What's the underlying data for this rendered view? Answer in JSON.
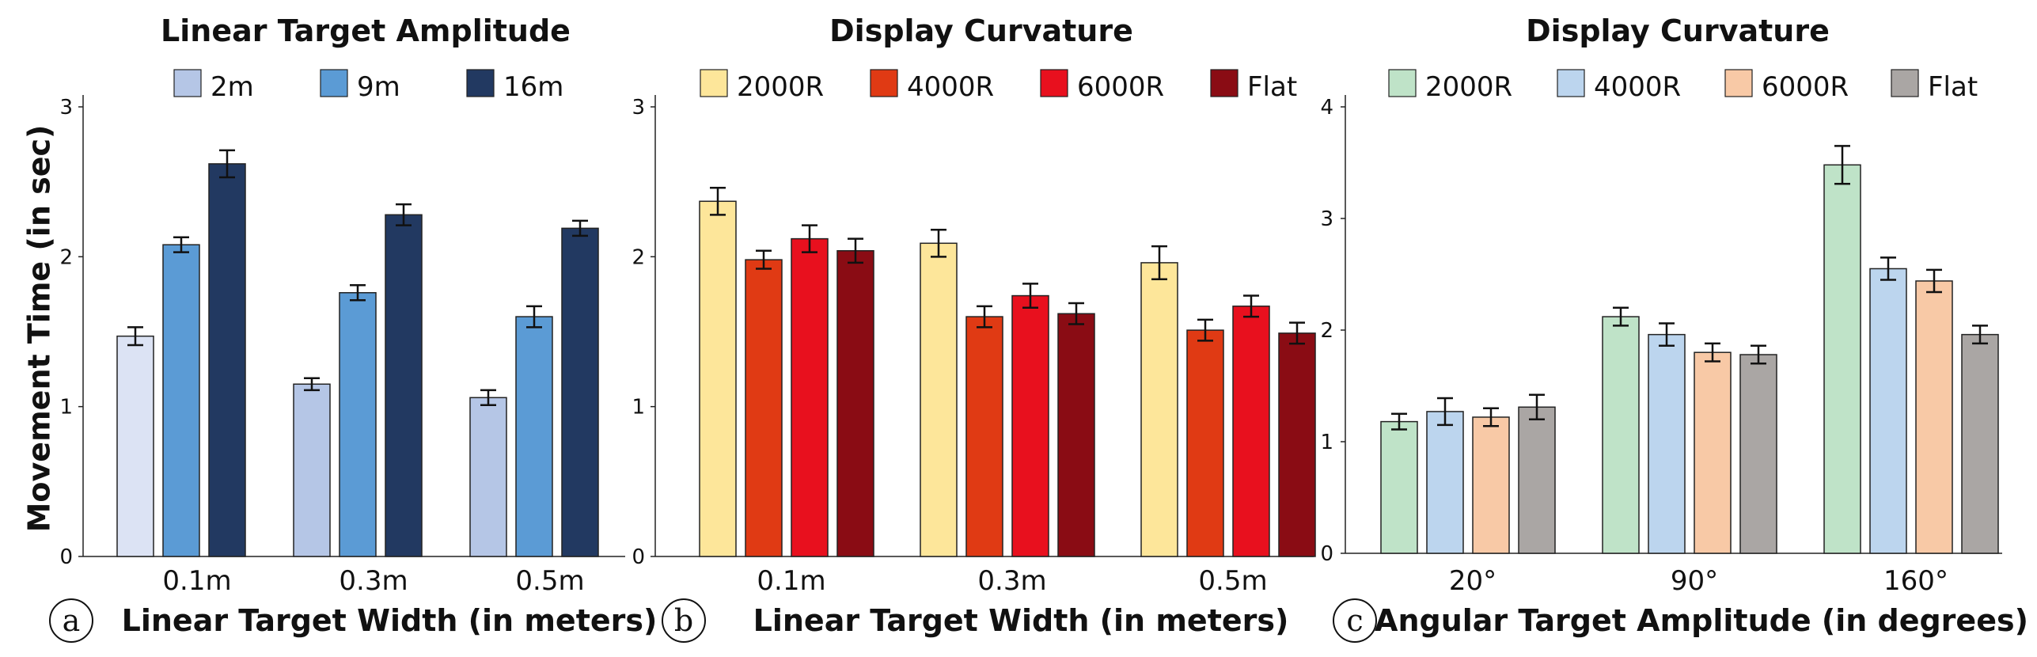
{
  "ylabel": "Movement Time (in sec)",
  "chart_data": [
    {
      "type": "bar",
      "panel_label": "a",
      "title": "Linear Target Amplitude",
      "xlabel": "Linear Target Width (in meters)",
      "ylabel": "Movement Time (in sec)",
      "categories": [
        "0.1m",
        "0.3m",
        "0.5m"
      ],
      "ylim": [
        0,
        3
      ],
      "yticks": [
        "0",
        "1",
        "2",
        "3"
      ],
      "series": [
        {
          "name": "2m",
          "values": [
            1.47,
            1.15,
            1.06
          ],
          "errors": [
            0.06,
            0.04,
            0.05
          ],
          "colors": [
            "#dce3f4",
            "#b5c6e6",
            "#b5c6e6"
          ]
        },
        {
          "name": "9m",
          "values": [
            2.08,
            1.76,
            1.6
          ],
          "errors": [
            0.05,
            0.05,
            0.07
          ],
          "colors": [
            "#5b9bd5",
            "#5b9bd5",
            "#5b9bd5"
          ]
        },
        {
          "name": "16m",
          "values": [
            2.62,
            2.28,
            2.19
          ],
          "errors": [
            0.09,
            0.07,
            0.05
          ],
          "colors": [
            "#223961",
            "#223961",
            "#223961"
          ]
        }
      ]
    },
    {
      "type": "bar",
      "panel_label": "b",
      "title": "Display Curvature",
      "xlabel": "Linear Target Width (in meters)",
      "categories": [
        "0.1m",
        "0.3m",
        "0.5m"
      ],
      "ylim": [
        0,
        3
      ],
      "yticks": [
        "0",
        "1",
        "2",
        "3"
      ],
      "series": [
        {
          "name": "2000R",
          "values": [
            2.37,
            2.09,
            1.96
          ],
          "errors": [
            0.09,
            0.09,
            0.11
          ],
          "colors": [
            "#fde69a",
            "#fde69a",
            "#fde69a"
          ]
        },
        {
          "name": "4000R",
          "values": [
            1.98,
            1.6,
            1.51
          ],
          "errors": [
            0.06,
            0.07,
            0.07
          ],
          "colors": [
            "#e03a14",
            "#e03a14",
            "#e03a14"
          ]
        },
        {
          "name": "6000R",
          "values": [
            2.12,
            1.74,
            1.67
          ],
          "errors": [
            0.09,
            0.08,
            0.07
          ],
          "colors": [
            "#e8101e",
            "#e8101e",
            "#e8101e"
          ]
        },
        {
          "name": "Flat",
          "values": [
            2.04,
            1.62,
            1.49
          ],
          "errors": [
            0.08,
            0.07,
            0.07
          ],
          "colors": [
            "#8a0c14",
            "#8a0c14",
            "#8a0c14"
          ]
        }
      ]
    },
    {
      "type": "bar",
      "panel_label": "c",
      "title": "Display Curvature",
      "xlabel": "Angular Target Amplitude (in degrees)",
      "categories": [
        "20°",
        "90°",
        "160°"
      ],
      "ylim": [
        0,
        4
      ],
      "yticks": [
        "0",
        "1",
        "2",
        "3",
        "4"
      ],
      "series": [
        {
          "name": "2000R",
          "values": [
            1.18,
            2.12,
            3.48
          ],
          "errors": [
            0.07,
            0.08,
            0.17
          ],
          "colors": [
            "#bfe3c8",
            "#bfe3c8",
            "#bfe3c8"
          ]
        },
        {
          "name": "4000R",
          "values": [
            1.27,
            1.96,
            2.55
          ],
          "errors": [
            0.12,
            0.1,
            0.1
          ],
          "colors": [
            "#bcd5ee",
            "#bcd5ee",
            "#bcd5ee"
          ]
        },
        {
          "name": "6000R",
          "values": [
            1.22,
            1.8,
            2.44
          ],
          "errors": [
            0.08,
            0.08,
            0.1
          ],
          "colors": [
            "#f8c9a6",
            "#f8c9a6",
            "#f8c9a6"
          ]
        },
        {
          "name": "Flat",
          "values": [
            1.31,
            1.78,
            1.96
          ],
          "errors": [
            0.11,
            0.08,
            0.08
          ],
          "colors": [
            "#aaa6a4",
            "#aaa6a4",
            "#aaa6a4"
          ]
        }
      ]
    }
  ]
}
